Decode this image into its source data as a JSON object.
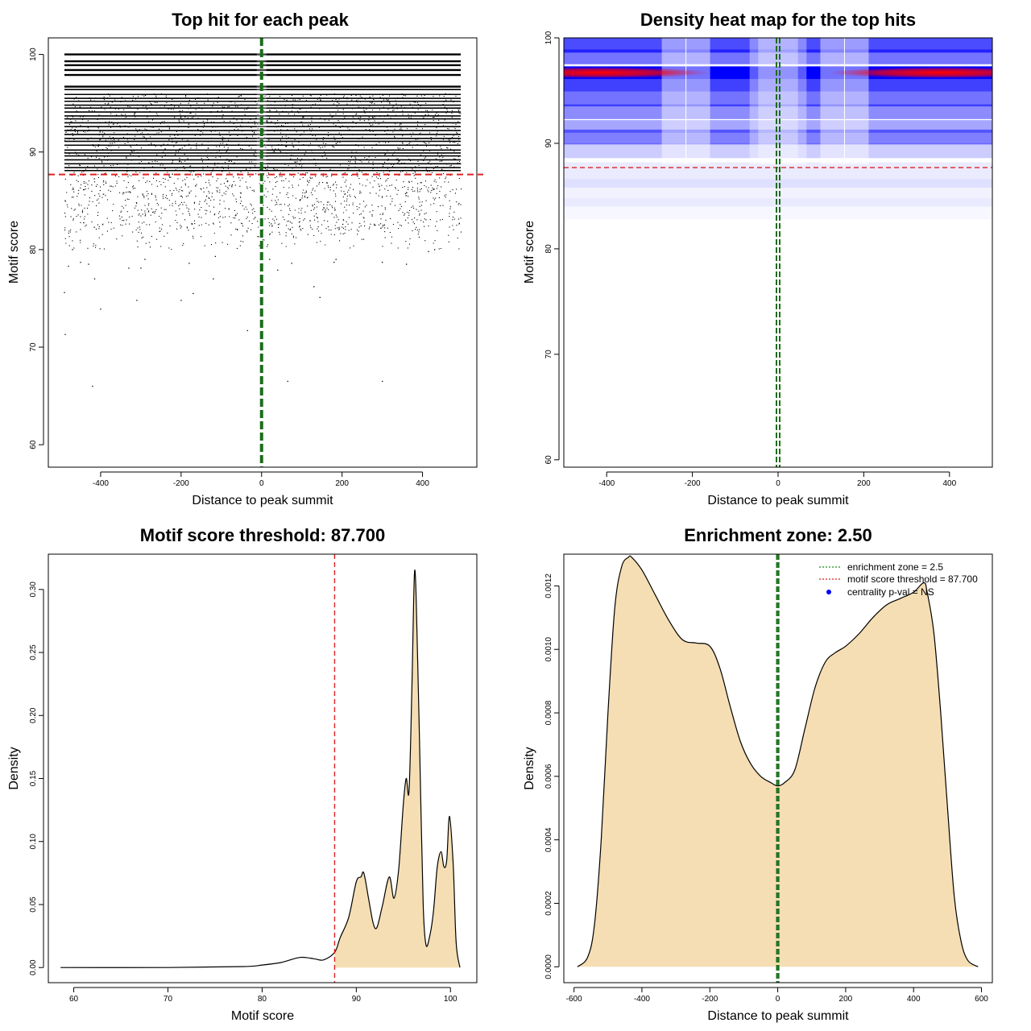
{
  "colors": {
    "threshold_line": "#dd2222",
    "zone_line": "#1a6e1a",
    "fill": "#f5deb3",
    "heat_low": "#ffffff",
    "heat_mid": "#0000ff",
    "heat_high": "#ff0000",
    "legend_dot": "#0000ff"
  },
  "chart_data": [
    {
      "id": "top-hit",
      "type": "scatter",
      "title": "Top hit for each peak",
      "xlabel": "Distance to peak summit",
      "ylabel": "Motif score",
      "xlim": [
        -530,
        535
      ],
      "ylim": [
        57.7,
        101.7
      ],
      "xticks": [
        -400,
        -200,
        0,
        200,
        400
      ],
      "yticks": [
        60,
        70,
        80,
        90,
        100
      ],
      "x_range": [
        -490,
        495
      ],
      "threshold": 87.7,
      "zone": 0,
      "score_levels": [
        100,
        99.3,
        98.9,
        98.4,
        97.9,
        96.7,
        96.4,
        95.9,
        95.5,
        95.2,
        94.8,
        94.5,
        94.1,
        93.7,
        93.4,
        93.0,
        92.6,
        92.2,
        91.8,
        91.4,
        91.1,
        90.7,
        90.2,
        89.9,
        89.6,
        89.2,
        88.8,
        88.4,
        88.1
      ],
      "sparse_points": [
        {
          "x": -490,
          "y": 75.6
        },
        {
          "x": -488,
          "y": 71.3
        },
        {
          "x": -480,
          "y": 78.3
        },
        {
          "x": -470,
          "y": 80.0
        },
        {
          "x": -420,
          "y": 66.0
        },
        {
          "x": -400,
          "y": 73.9
        },
        {
          "x": -415,
          "y": 77.0
        },
        {
          "x": -430,
          "y": 78.5
        },
        {
          "x": -450,
          "y": 78.7
        },
        {
          "x": -330,
          "y": 78.1
        },
        {
          "x": -310,
          "y": 74.8
        },
        {
          "x": -300,
          "y": 78.1
        },
        {
          "x": -290,
          "y": 79.0
        },
        {
          "x": -200,
          "y": 74.8
        },
        {
          "x": -180,
          "y": 78.6
        },
        {
          "x": -170,
          "y": 75.5
        },
        {
          "x": -120,
          "y": 77.0
        },
        {
          "x": -115,
          "y": 79.3
        },
        {
          "x": -35,
          "y": 71.7
        },
        {
          "x": 20,
          "y": 79.0
        },
        {
          "x": 40,
          "y": 77.9
        },
        {
          "x": 65,
          "y": 66.5
        },
        {
          "x": 75,
          "y": 78.6
        },
        {
          "x": 130,
          "y": 76.2
        },
        {
          "x": 145,
          "y": 75.1
        },
        {
          "x": 180,
          "y": 78.7
        },
        {
          "x": 185,
          "y": 79.0
        },
        {
          "x": 300,
          "y": 66.5
        },
        {
          "x": 300,
          "y": 78.7
        },
        {
          "x": 360,
          "y": 78.5
        },
        {
          "x": 415,
          "y": 79.8
        },
        {
          "x": 430,
          "y": 80.0
        }
      ]
    },
    {
      "id": "heat",
      "type": "heatmap",
      "title": "Density heat map for the top hits",
      "xlabel": "Distance to peak summit",
      "ylabel": "Motif score",
      "xlim": [
        -500,
        500
      ],
      "ylim": [
        59.3,
        100
      ],
      "xticks": [
        -400,
        -200,
        0,
        200,
        400
      ],
      "yticks": [
        60,
        70,
        80,
        90,
        100
      ],
      "threshold": 87.7,
      "zone": 0,
      "peak_row": 96.7,
      "hot_x": [
        -420,
        380
      ]
    },
    {
      "id": "score-density",
      "type": "area",
      "title": "Motif score threshold: 87.700",
      "xlabel": "Motif score",
      "ylabel": "Density",
      "xlim": [
        57.3,
        102.8
      ],
      "ylim": [
        -0.012,
        0.328
      ],
      "xticks": [
        60,
        70,
        80,
        90,
        100
      ],
      "yticks": [
        0,
        0.05,
        0.1,
        0.15,
        0.2,
        0.25,
        0.3
      ],
      "ytick_labels": [
        "0.00",
        "0.05",
        "0.10",
        "0.15",
        "0.20",
        "0.25",
        "0.30"
      ],
      "threshold": 87.7,
      "x": [
        58.6,
        70,
        78,
        80,
        82,
        84,
        85.5,
        86.5,
        87.7,
        88.3,
        89.2,
        90.0,
        90.5,
        90.8,
        91.3,
        91.8,
        92.2,
        92.8,
        93.5,
        94.0,
        94.5,
        95.0,
        95.3,
        95.6,
        95.9,
        96.2,
        96.5,
        96.8,
        97.1,
        97.4,
        97.8,
        98.2,
        98.6,
        99.0,
        99.3,
        99.6,
        99.9,
        100.3,
        100.6,
        101.0
      ],
      "y": [
        0,
        0,
        0.0008,
        0.002,
        0.004,
        0.008,
        0.007,
        0.006,
        0.012,
        0.024,
        0.04,
        0.068,
        0.072,
        0.075,
        0.055,
        0.035,
        0.032,
        0.05,
        0.072,
        0.055,
        0.078,
        0.13,
        0.15,
        0.14,
        0.22,
        0.315,
        0.25,
        0.15,
        0.05,
        0.018,
        0.025,
        0.045,
        0.08,
        0.092,
        0.08,
        0.085,
        0.12,
        0.08,
        0.02,
        0.0
      ]
    },
    {
      "id": "distance-density",
      "type": "area",
      "title": "Enrichment zone: 2.50",
      "xlabel": "Distance to peak summit",
      "ylabel": "Density",
      "xlim": [
        -630,
        632
      ],
      "ylim": [
        -5e-05,
        0.0013
      ],
      "xticks": [
        -600,
        -400,
        -200,
        0,
        200,
        400,
        600
      ],
      "yticks": [
        0,
        0.0002,
        0.0004,
        0.0006,
        0.0008,
        0.001,
        0.0012
      ],
      "ytick_labels": [
        "0.0000",
        "0.0002",
        "0.0004",
        "0.0006",
        "0.0008",
        "0.0010",
        "0.0012"
      ],
      "zone": 2.5,
      "zone_half": 2.5,
      "x": [
        -590,
        -560,
        -540,
        -520,
        -500,
        -480,
        -460,
        -440,
        -430,
        -400,
        -360,
        -320,
        -280,
        -240,
        -200,
        -170,
        -140,
        -110,
        -80,
        -50,
        -20,
        0,
        20,
        50,
        80,
        110,
        140,
        170,
        200,
        240,
        280,
        320,
        360,
        400,
        430,
        440,
        460,
        480,
        500,
        520,
        540,
        560,
        590
      ],
      "y": [
        0.0,
        3e-05,
        0.00013,
        0.0004,
        0.0008,
        0.00113,
        0.00126,
        0.00129,
        0.00129,
        0.00125,
        0.00117,
        0.00109,
        0.00103,
        0.00102,
        0.00101,
        0.00094,
        0.00082,
        0.00071,
        0.00064,
        0.0006,
        0.00058,
        0.00057,
        0.00058,
        0.00062,
        0.00075,
        0.00088,
        0.00096,
        0.00099,
        0.00101,
        0.00105,
        0.0011,
        0.00114,
        0.00116,
        0.00118,
        0.00121,
        0.00118,
        0.00105,
        0.0008,
        0.0005,
        0.00022,
        8e-05,
        2e-05,
        0.0
      ],
      "legend": [
        {
          "label": "enrichment zone = 2.5",
          "style": "dotted",
          "color": "#1a8a1a"
        },
        {
          "label": "motif score threshold = 87.700",
          "style": "dotted",
          "color": "#dd2222"
        },
        {
          "label": "centrality p-val = NS",
          "style": "dot",
          "color": "#0000ff"
        }
      ],
      "legend_position": "top-right"
    }
  ]
}
